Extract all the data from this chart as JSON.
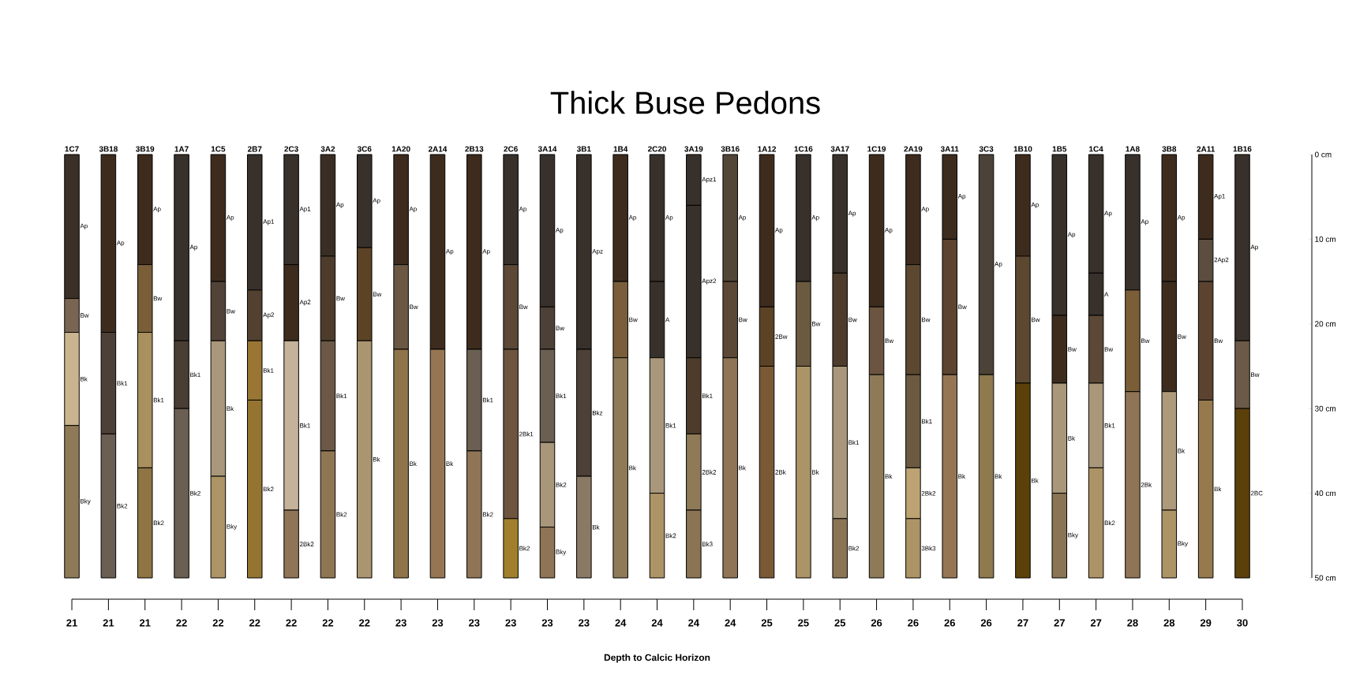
{
  "chart_data": {
    "type": "bar",
    "title": "Thick Buse Pedons",
    "stacked": true,
    "categories": [
      "1C7",
      "3B18",
      "3B19",
      "1A7",
      "1C5",
      "2B7",
      "2C3",
      "3A2",
      "3C6",
      "1A20",
      "2A14",
      "2B13",
      "2C6",
      "3A14",
      "3B1",
      "1B4",
      "2C20",
      "3A19",
      "3B16",
      "1A12",
      "1C16",
      "3A17",
      "1C19",
      "2A19",
      "3A11",
      "3C3",
      "1B10",
      "1B5",
      "1C4",
      "1A8",
      "3B8",
      "2A11",
      "1B16"
    ],
    "series": [
      {
        "values": [
          17,
          21,
          13,
          22,
          15,
          16,
          13,
          12,
          11,
          13,
          23,
          23,
          13,
          18,
          23,
          15,
          15,
          6,
          15,
          18,
          15,
          14,
          18,
          13,
          10,
          26,
          12,
          19,
          14,
          16,
          15,
          10,
          22
        ],
        "colors": [
          "#3a3028",
          "#3d2c1e",
          "#3d2c1e",
          "#38302a",
          "#3d2c1e",
          "#38302a",
          "#38302a",
          "#3a2e24",
          "#38302a",
          "#3d2c1e",
          "#3d2c1e",
          "#3d2c1e",
          "#38302a",
          "#38302a",
          "#38302a",
          "#3d2c1e",
          "#38302a",
          "#38302a",
          "#524638",
          "#3d2c1e",
          "#38302a",
          "#38302a",
          "#3d2c1e",
          "#3d2c1e",
          "#3d2c1e",
          "#4d4238",
          "#3d2c1e",
          "#38302a",
          "#38302a",
          "#38302a",
          "#3d2c1e",
          "#3d2c1e",
          "#38302a"
        ]
      },
      {
        "values": [
          4,
          12,
          8,
          8,
          7,
          6,
          9,
          10,
          11,
          10,
          27,
          12,
          10,
          5,
          15,
          9,
          9,
          18,
          9,
          7,
          10,
          11,
          8,
          13,
          16,
          24,
          15,
          8,
          5,
          12,
          13,
          5,
          8
        ],
        "colors": [
          "#7a6552",
          "#4d4036",
          "#7a5e38",
          "#4a3e34",
          "#524338",
          "#524030",
          "#3d2c1e",
          "#4d3c2c",
          "#5c4326",
          "#6b5844",
          "#967652",
          "#6b5e52",
          "#5c4836",
          "#4d4036",
          "#4d4036",
          "#7a5e3c",
          "#38302a",
          "#38302a",
          "#5c4836",
          "#5c4326",
          "#6b5a40",
          "#4d3c2c",
          "#6b5440",
          "#5c4830",
          "#5c4430",
          "#8f7a4e",
          "#5c4830",
          "#3d2c1e",
          "#38302a",
          "#7a5e38",
          "#3d2c1e",
          "#5c4d40",
          "#6b5a48"
        ]
      },
      {
        "values": [
          11,
          17,
          16,
          20,
          16,
          7,
          20,
          13,
          28,
          27,
          null,
          15,
          20,
          11,
          12,
          26,
          16,
          9,
          26,
          25,
          25,
          18,
          24,
          11,
          24,
          null,
          23,
          13,
          8,
          22,
          14,
          14,
          20
        ],
        "colors": [
          "#c9b48f",
          "#6b5e52",
          "#a8915e",
          "#6b5e52",
          "#a8977a",
          "#9a7634",
          "#c4b29a",
          "#6b5846",
          "#ab9570",
          "#8f744a",
          null,
          "#8f7456",
          "#6e5540",
          "#6b5e52",
          "#8a7a64",
          "#8f7a58",
          "#a8977a",
          "#4d3c2c",
          "#8f7456",
          "#7a5a36",
          "#ab9466",
          "#a8977a",
          "#8f7a58",
          "#6b5a40",
          "#967652",
          null,
          "#5c400a",
          "#a8977a",
          "#5c4836",
          "#8f7456",
          "#ad9a7a",
          "#5c4330",
          "#5c400a"
        ]
      },
      {
        "values": [
          18,
          null,
          13,
          null,
          12,
          21,
          8,
          15,
          null,
          null,
          null,
          null,
          7,
          10,
          null,
          null,
          10,
          9,
          null,
          null,
          null,
          7,
          null,
          6,
          null,
          null,
          null,
          10,
          10,
          null,
          8,
          21,
          null
        ],
        "colors": [
          "#8f7a58",
          null,
          "#8f7444",
          null,
          "#ad9466",
          "#957432",
          "#8f7456",
          "#8f7652",
          null,
          null,
          null,
          null,
          "#a0802c",
          "#a8977a",
          null,
          null,
          "#ad9466",
          "#8f7a58",
          null,
          null,
          null,
          "#8a7454",
          null,
          "#bda273",
          null,
          null,
          null,
          "#8a7454",
          "#a8977a",
          null,
          "#ad9466",
          "#967a4e",
          null
        ]
      },
      {
        "values": [
          null,
          null,
          null,
          null,
          null,
          null,
          null,
          null,
          null,
          null,
          null,
          null,
          null,
          6,
          null,
          null,
          null,
          8,
          null,
          null,
          null,
          null,
          null,
          7,
          null,
          null,
          null,
          null,
          13,
          null,
          null,
          null,
          null
        ],
        "colors": [
          null,
          null,
          null,
          null,
          null,
          null,
          null,
          null,
          null,
          null,
          null,
          null,
          null,
          "#8f7456",
          null,
          null,
          null,
          "#8a7454",
          null,
          null,
          null,
          null,
          null,
          "#ad9466",
          null,
          null,
          null,
          null,
          "#ad9466",
          null,
          null,
          null,
          null
        ]
      }
    ],
    "ylim": [
      50,
      0
    ],
    "yticks": [
      {
        "value": 0,
        "label": "0 cm"
      },
      {
        "value": 10,
        "label": "10 cm"
      },
      {
        "value": 20,
        "label": "20 cm"
      },
      {
        "value": 30,
        "label": "30 cm"
      },
      {
        "value": 40,
        "label": "40 cm"
      },
      {
        "value": 50,
        "label": "50 cm"
      }
    ],
    "annotations": [
      "Ap",
      "Bw",
      "Bk",
      "Bky",
      "Ap",
      "Bk1",
      "Bk2",
      "Ap",
      "Bw",
      "Bk1",
      "Bk2",
      "Ap",
      "Bk1",
      "Bk2",
      "Ap",
      "Bw",
      "Bk",
      "Bky",
      "Ap1",
      "Ap2",
      "Bk1",
      "Bk2",
      "Ap1",
      "Ap2",
      "Bk1",
      "2Bk2",
      "Ap",
      "Bw",
      "Bk1",
      "Bk2",
      "Ap",
      "Bw",
      "Bk",
      "Ap",
      "Bw",
      "Bk",
      "Ap",
      "Bk",
      "Ap",
      "Bk1",
      "Bk2",
      "Ap",
      "Bw",
      "2Bk1",
      "Bk2",
      "Ap",
      "Bw",
      "Bk1",
      "Bk2",
      "Bky",
      "Apz",
      "Bkz",
      "Bk",
      "Ap",
      "Bw",
      "Bk",
      "Ap",
      "A",
      "Bk1",
      "Bk2",
      "Apz1",
      "Apz2",
      "Bk1",
      "2Bk2",
      "Bk3",
      "Ap",
      "Bw",
      "Bk",
      "Ap",
      "2Bw",
      "2Bk",
      "Ap",
      "Bw",
      "Bk",
      "Ap",
      "Bw",
      "Bk1",
      "Bk2",
      "Ap",
      "Bw",
      "Bk",
      "Ap",
      "Bw",
      "Bk1",
      "2Bk2",
      "3Bk3",
      "Ap",
      "Bw",
      "Bk",
      "Ap",
      "Bk",
      "Ap",
      "Bw",
      "Bk",
      "Ap",
      "Bw",
      "Bk",
      "Bky",
      "Ap",
      "A",
      "Bw",
      "Bk1",
      "Bk2",
      "Ap",
      "Bw",
      "2Bk",
      "Ap",
      "Bw",
      "Bk",
      "Bky",
      "Ap1",
      "2Ap2",
      "Bw",
      "Bk",
      "Ap",
      "Bw",
      "2BC",
      {
        "text": "21",
        "x": "1C7"
      },
      {
        "text": "21",
        "x": "3B18"
      },
      {
        "text": "21",
        "x": "3B19"
      },
      {
        "text": "22",
        "x": "1A7"
      },
      {
        "text": "22",
        "x": "1C5"
      },
      {
        "text": "22",
        "x": "2B7"
      },
      {
        "text": "22",
        "x": "2C3"
      },
      {
        "text": "22",
        "x": "3A2"
      },
      {
        "text": "22",
        "x": "3C6"
      },
      {
        "text": "23",
        "x": "1A20"
      },
      {
        "text": "23",
        "x": "2A14"
      },
      {
        "text": "23",
        "x": "2B13"
      },
      {
        "text": "23",
        "x": "2C6"
      },
      {
        "text": "23",
        "x": "3A14"
      },
      {
        "text": "23",
        "x": "3B1"
      },
      {
        "text": "24",
        "x": "1B4"
      },
      {
        "text": "24",
        "x": "2C20"
      },
      {
        "text": "24",
        "x": "3A19"
      },
      {
        "text": "24",
        "x": "3B16"
      },
      {
        "text": "25",
        "x": "1A12"
      },
      {
        "text": "25",
        "x": "1C16"
      },
      {
        "text": "25",
        "x": "3A17"
      },
      {
        "text": "26",
        "x": "1C19"
      },
      {
        "text": "26",
        "x": "2A19"
      },
      {
        "text": "26",
        "x": "3A11"
      },
      {
        "text": "26",
        "x": "3C3"
      },
      {
        "text": "27",
        "x": "1B10"
      },
      {
        "text": "27",
        "x": "1B5"
      },
      {
        "text": "27",
        "x": "1C4"
      },
      {
        "text": "28",
        "x": "1A8"
      },
      {
        "text": "28",
        "x": "3B8"
      },
      {
        "text": "29",
        "x": "2A11"
      },
      {
        "text": "30",
        "x": "1B16"
      },
      "Depth to Calcic Horizon"
    ]
  }
}
